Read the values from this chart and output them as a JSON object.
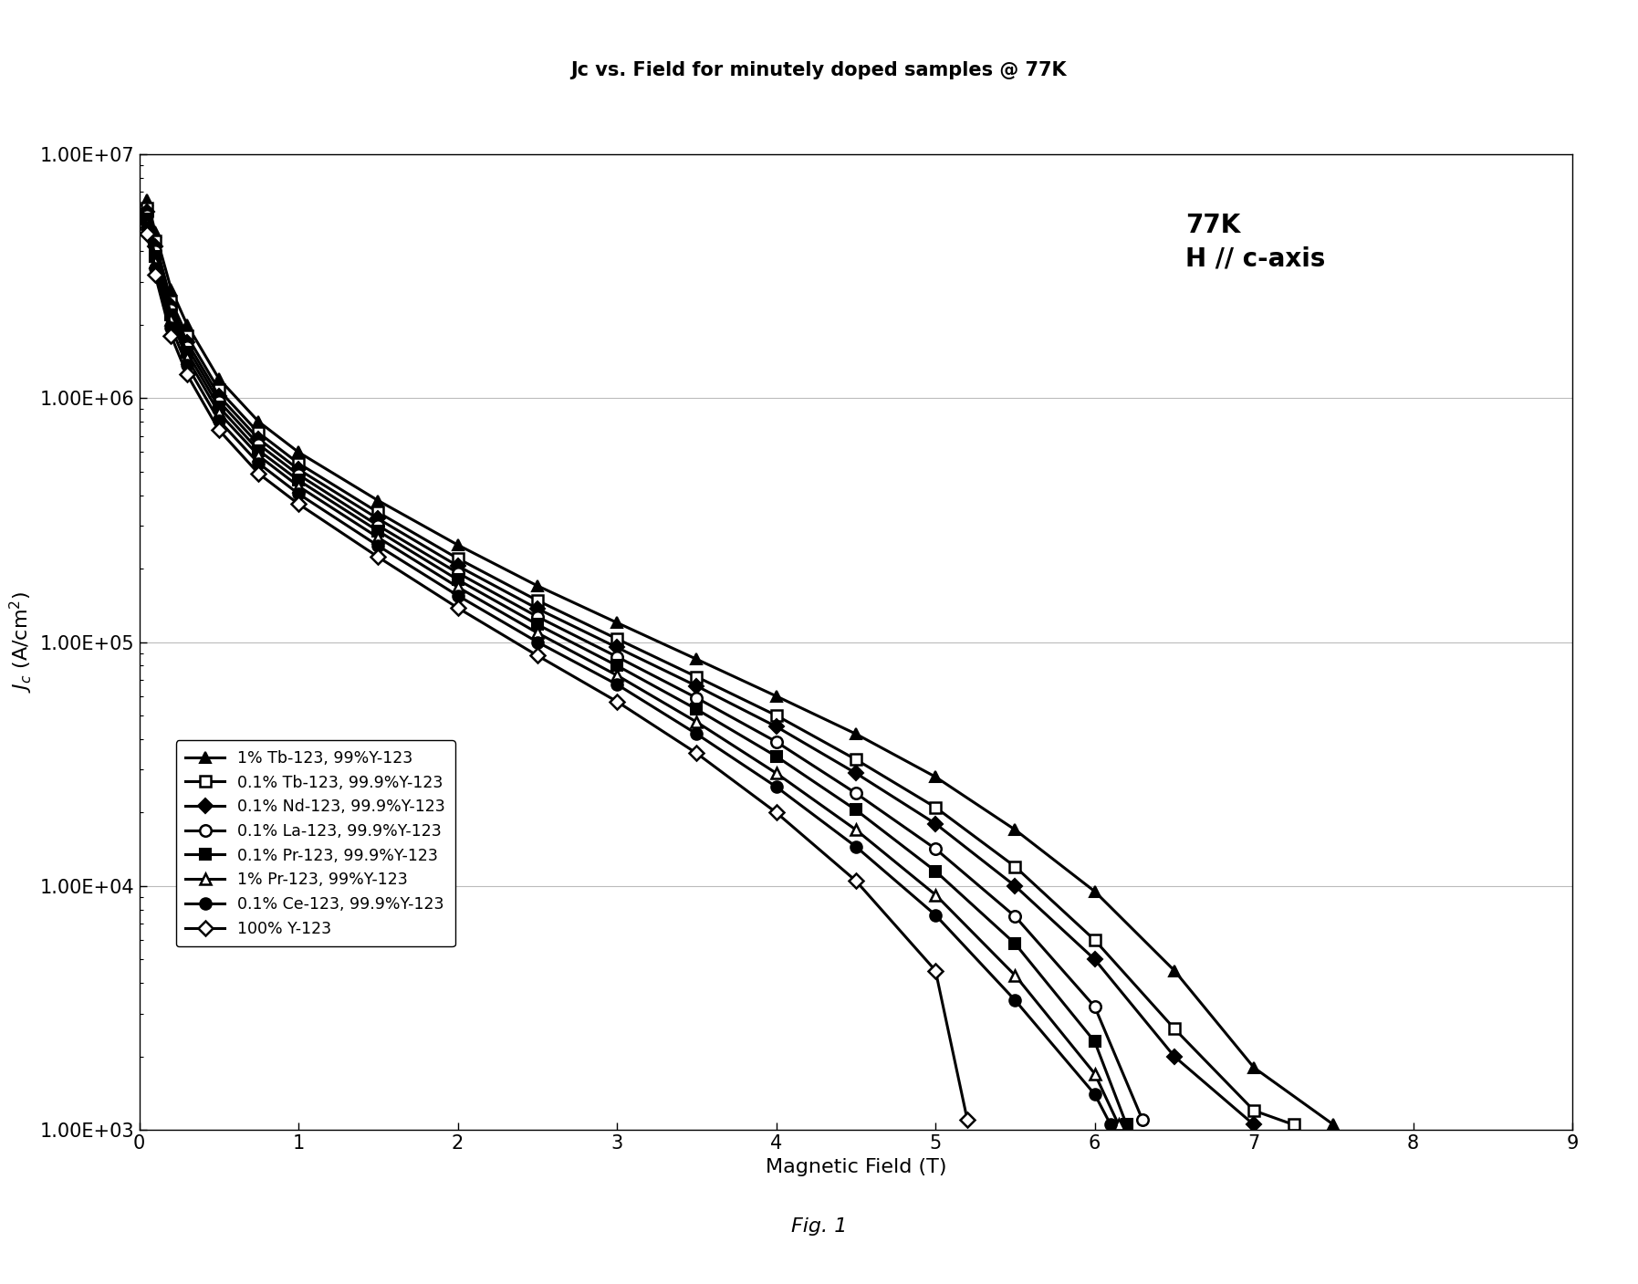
{
  "title": "Jc vs. Field for minutely doped samples @ 77K",
  "xlabel": "Magnetic Field (T)",
  "annotation": "77K\nH // c-axis",
  "fig_caption": "Fig. 1",
  "xlim": [
    0,
    9
  ],
  "ylim_log": [
    3,
    7
  ],
  "xticks": [
    0,
    1,
    2,
    3,
    4,
    5,
    6,
    7,
    8,
    9
  ],
  "series": [
    {
      "label": "1% Tb-123, 99%Y-123",
      "marker": "^",
      "markersize": 9,
      "fillstyle": "full",
      "linewidth": 2.2,
      "x": [
        0.05,
        0.1,
        0.2,
        0.3,
        0.5,
        0.75,
        1.0,
        1.5,
        2.0,
        2.5,
        3.0,
        3.5,
        4.0,
        4.5,
        5.0,
        5.5,
        6.0,
        6.5,
        7.0,
        7.5
      ],
      "y": [
        6500000,
        4800000,
        2800000,
        2000000,
        1200000,
        800000,
        600000,
        380000,
        250000,
        170000,
        120000,
        85000,
        60000,
        42000,
        28000,
        17000,
        9500,
        4500,
        1800,
        1050
      ]
    },
    {
      "label": "0.1% Tb-123, 99.9%Y-123",
      "marker": "s",
      "markersize": 9,
      "fillstyle": "none",
      "linewidth": 2.2,
      "x": [
        0.05,
        0.1,
        0.2,
        0.3,
        0.5,
        0.75,
        1.0,
        1.5,
        2.0,
        2.5,
        3.0,
        3.5,
        4.0,
        4.5,
        5.0,
        5.5,
        6.0,
        6.5,
        7.0,
        7.25
      ],
      "y": [
        6000000,
        4400000,
        2500000,
        1800000,
        1080000,
        720000,
        540000,
        340000,
        220000,
        148000,
        103000,
        72000,
        50000,
        33000,
        21000,
        12000,
        6000,
        2600,
        1200,
        1050
      ]
    },
    {
      "label": "0.1% Nd-123, 99.9%Y-123",
      "marker": "D",
      "markersize": 8,
      "fillstyle": "full",
      "linewidth": 2.2,
      "x": [
        0.05,
        0.1,
        0.2,
        0.3,
        0.5,
        0.75,
        1.0,
        1.5,
        2.0,
        2.5,
        3.0,
        3.5,
        4.0,
        4.5,
        5.0,
        5.5,
        6.0,
        6.5,
        7.0
      ],
      "y": [
        5800000,
        4200000,
        2400000,
        1700000,
        1020000,
        680000,
        510000,
        320000,
        205000,
        137000,
        95000,
        66000,
        45000,
        29000,
        18000,
        10000,
        5000,
        2000,
        1050
      ]
    },
    {
      "label": "0.1% La-123, 99.9%Y-123",
      "marker": "o",
      "markersize": 9,
      "fillstyle": "none",
      "linewidth": 2.2,
      "x": [
        0.05,
        0.1,
        0.2,
        0.3,
        0.5,
        0.75,
        1.0,
        1.5,
        2.0,
        2.5,
        3.0,
        3.5,
        4.0,
        4.5,
        5.0,
        5.5,
        6.0,
        6.3
      ],
      "y": [
        5600000,
        4000000,
        2300000,
        1620000,
        970000,
        645000,
        485000,
        300000,
        192000,
        127000,
        87000,
        59000,
        39000,
        24000,
        14200,
        7500,
        3200,
        1100
      ]
    },
    {
      "label": "0.1% Pr-123, 99.9%Y-123",
      "marker": "s",
      "markersize": 9,
      "fillstyle": "full",
      "linewidth": 2.2,
      "x": [
        0.05,
        0.1,
        0.2,
        0.3,
        0.5,
        0.75,
        1.0,
        1.5,
        2.0,
        2.5,
        3.0,
        3.5,
        4.0,
        4.5,
        5.0,
        5.5,
        6.0,
        6.2
      ],
      "y": [
        5400000,
        3800000,
        2200000,
        1540000,
        920000,
        610000,
        460000,
        285000,
        180000,
        118000,
        80000,
        53000,
        34000,
        20500,
        11500,
        5800,
        2300,
        1050
      ]
    },
    {
      "label": "1% Pr-123, 99%Y-123",
      "marker": "^",
      "markersize": 9,
      "fillstyle": "none",
      "linewidth": 2.2,
      "x": [
        0.05,
        0.1,
        0.2,
        0.3,
        0.5,
        0.75,
        1.0,
        1.5,
        2.0,
        2.5,
        3.0,
        3.5,
        4.0,
        4.5,
        5.0,
        5.5,
        6.0,
        6.15
      ],
      "y": [
        5200000,
        3600000,
        2100000,
        1460000,
        870000,
        580000,
        435000,
        268000,
        168000,
        109000,
        73000,
        47000,
        29000,
        17000,
        9200,
        4300,
        1700,
        1050
      ]
    },
    {
      "label": "0.1% Ce-123, 99.9%Y-123",
      "marker": "o",
      "markersize": 9,
      "fillstyle": "full",
      "linewidth": 2.2,
      "x": [
        0.05,
        0.1,
        0.2,
        0.3,
        0.5,
        0.75,
        1.0,
        1.5,
        2.0,
        2.5,
        3.0,
        3.5,
        4.0,
        4.5,
        5.0,
        5.5,
        6.0,
        6.1
      ],
      "y": [
        5000000,
        3400000,
        1950000,
        1360000,
        810000,
        540000,
        405000,
        248000,
        155000,
        100000,
        67000,
        42000,
        25500,
        14500,
        7600,
        3400,
        1400,
        1050
      ]
    },
    {
      "label": "100% Y-123",
      "marker": "D",
      "markersize": 8,
      "fillstyle": "none",
      "linewidth": 2.2,
      "x": [
        0.05,
        0.1,
        0.2,
        0.3,
        0.5,
        0.75,
        1.0,
        1.5,
        2.0,
        2.5,
        3.0,
        3.5,
        4.0,
        4.5,
        5.0,
        5.2
      ],
      "y": [
        4700000,
        3200000,
        1800000,
        1250000,
        740000,
        490000,
        368000,
        223000,
        138000,
        88000,
        57000,
        35000,
        20000,
        10500,
        4500,
        1100
      ]
    }
  ]
}
